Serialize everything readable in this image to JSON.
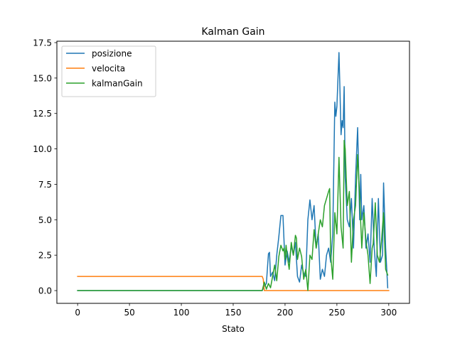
{
  "chart_data": {
    "type": "line",
    "title": "Kalman Gain",
    "xlabel": "Stato",
    "ylabel": "",
    "xlim": [
      -20,
      320
    ],
    "ylim": [
      -0.9,
      17.6
    ],
    "xticks": [
      0,
      50,
      100,
      150,
      200,
      250,
      300
    ],
    "yticks": [
      0.0,
      2.5,
      5.0,
      7.5,
      10.0,
      12.5,
      15.0,
      17.5
    ],
    "ytick_labels": [
      "0.0",
      "2.5",
      "5.0",
      "7.5",
      "10.0",
      "12.5",
      "15.0",
      "17.5"
    ],
    "legend_position": "top-left",
    "grid": false,
    "series": [
      {
        "name": "posizione",
        "color": "#1f77b4",
        "points": [
          [
            0,
            0
          ],
          [
            178,
            0
          ],
          [
            180,
            0.3
          ],
          [
            182,
            0.5
          ],
          [
            184,
            2.6
          ],
          [
            185,
            2.7
          ],
          [
            186,
            1.0
          ],
          [
            188,
            1.3
          ],
          [
            190,
            0.7
          ],
          [
            192,
            2.5
          ],
          [
            194,
            3.8
          ],
          [
            196,
            5.3
          ],
          [
            198,
            5.3
          ],
          [
            200,
            1.8
          ],
          [
            202,
            2.8
          ],
          [
            204,
            2.0
          ],
          [
            206,
            3.2
          ],
          [
            208,
            2.5
          ],
          [
            210,
            3.4
          ],
          [
            212,
            1.0
          ],
          [
            214,
            0.6
          ],
          [
            216,
            1.8
          ],
          [
            218,
            1.2
          ],
          [
            220,
            1.0
          ],
          [
            222,
            5.0
          ],
          [
            224,
            6.4
          ],
          [
            226,
            5.0
          ],
          [
            228,
            6.0
          ],
          [
            230,
            3.0
          ],
          [
            232,
            4.0
          ],
          [
            234,
            0.8
          ],
          [
            236,
            1.5
          ],
          [
            238,
            1.0
          ],
          [
            240,
            2.5
          ],
          [
            242,
            3.0
          ],
          [
            244,
            2.0
          ],
          [
            246,
            4.0
          ],
          [
            248,
            13.3
          ],
          [
            249,
            12.3
          ],
          [
            250,
            13.0
          ],
          [
            252,
            16.8
          ],
          [
            253,
            14.0
          ],
          [
            254,
            11.0
          ],
          [
            255,
            12.0
          ],
          [
            256,
            11.5
          ],
          [
            257,
            14.4
          ],
          [
            258,
            8.0
          ],
          [
            260,
            5.0
          ],
          [
            262,
            4.5
          ],
          [
            264,
            6.5
          ],
          [
            266,
            3.0
          ],
          [
            268,
            8.0
          ],
          [
            270,
            11.5
          ],
          [
            272,
            5.0
          ],
          [
            273,
            8.2
          ],
          [
            274,
            5.0
          ],
          [
            276,
            6.0
          ],
          [
            278,
            3.0
          ],
          [
            280,
            4.0
          ],
          [
            282,
            2.0
          ],
          [
            284,
            6.5
          ],
          [
            286,
            3.0
          ],
          [
            288,
            1.0
          ],
          [
            290,
            6.5
          ],
          [
            292,
            2.0
          ],
          [
            294,
            2.5
          ],
          [
            295,
            7.6
          ],
          [
            297,
            3.0
          ],
          [
            299,
            0.2
          ]
        ]
      },
      {
        "name": "velocita",
        "color": "#ff7f0e",
        "points": [
          [
            0,
            1.0
          ],
          [
            178,
            1.0
          ],
          [
            179,
            0.8
          ],
          [
            180,
            0.0
          ],
          [
            300,
            0.0
          ]
        ]
      },
      {
        "name": "kalmanGain",
        "color": "#2ca02c",
        "points": [
          [
            0,
            0
          ],
          [
            178,
            0
          ],
          [
            180,
            0.6
          ],
          [
            182,
            0.1
          ],
          [
            184,
            0.5
          ],
          [
            186,
            0.2
          ],
          [
            188,
            1.0
          ],
          [
            190,
            1.8
          ],
          [
            192,
            0.7
          ],
          [
            194,
            2.4
          ],
          [
            196,
            3.2
          ],
          [
            198,
            2.8
          ],
          [
            199,
            3.0
          ],
          [
            200,
            2.2
          ],
          [
            201,
            3.2
          ],
          [
            202,
            2.5
          ],
          [
            204,
            1.5
          ],
          [
            206,
            3.4
          ],
          [
            208,
            2.5
          ],
          [
            210,
            3.9
          ],
          [
            211,
            3.7
          ],
          [
            212,
            2.2
          ],
          [
            214,
            3.0
          ],
          [
            216,
            2.4
          ],
          [
            218,
            0.8
          ],
          [
            220,
            1.5
          ],
          [
            222,
            0.0
          ],
          [
            224,
            2.5
          ],
          [
            226,
            2.2
          ],
          [
            228,
            4.3
          ],
          [
            230,
            3.0
          ],
          [
            232,
            4.0
          ],
          [
            234,
            5.0
          ],
          [
            236,
            4.5
          ],
          [
            238,
            6.0
          ],
          [
            240,
            6.5
          ],
          [
            242,
            7.0
          ],
          [
            243,
            7.2
          ],
          [
            244,
            2.5
          ],
          [
            246,
            0.8
          ],
          [
            248,
            5.5
          ],
          [
            250,
            4.0
          ],
          [
            252,
            9.4
          ],
          [
            254,
            4.5
          ],
          [
            256,
            3.0
          ],
          [
            257,
            10.6
          ],
          [
            258,
            10.0
          ],
          [
            260,
            6.0
          ],
          [
            262,
            7.0
          ],
          [
            264,
            2.0
          ],
          [
            266,
            5.0
          ],
          [
            268,
            6.0
          ],
          [
            270,
            9.6
          ],
          [
            272,
            6.5
          ],
          [
            274,
            3.0
          ],
          [
            276,
            5.5
          ],
          [
            278,
            3.5
          ],
          [
            280,
            2.5
          ],
          [
            282,
            0.5
          ],
          [
            284,
            3.0
          ],
          [
            285,
            3.3
          ],
          [
            287,
            6.2
          ],
          [
            289,
            2.5
          ],
          [
            291,
            2.0
          ],
          [
            293,
            3.5
          ],
          [
            295,
            5.5
          ],
          [
            297,
            1.5
          ],
          [
            299,
            1.1
          ]
        ]
      }
    ]
  }
}
